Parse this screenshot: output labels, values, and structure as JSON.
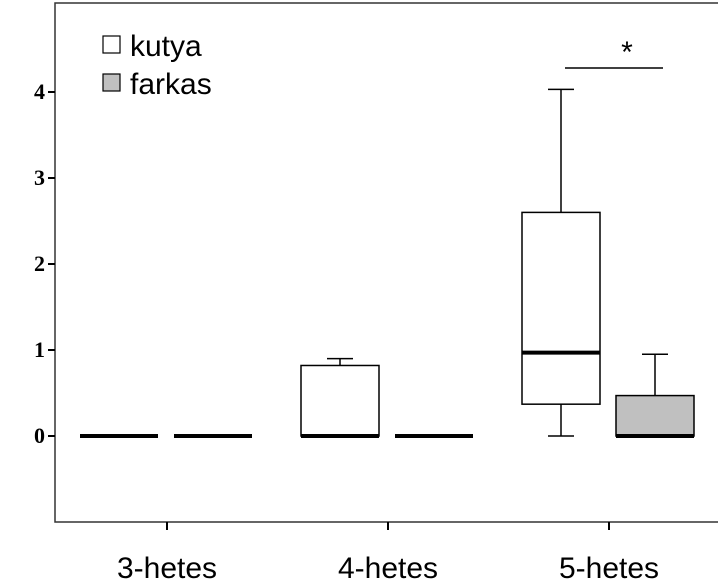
{
  "chart_data": {
    "type": "box",
    "categories": [
      "3-hetes",
      "4-hetes",
      "5-hetes"
    ],
    "series": [
      {
        "name": "kutya",
        "color": "#ffffff",
        "min": [
          0,
          0,
          0
        ],
        "q1": [
          0,
          0,
          0.37
        ],
        "median": [
          0,
          0,
          0.97
        ],
        "q3": [
          0,
          0.82,
          2.6
        ],
        "max": [
          0,
          0.9,
          4.03
        ]
      },
      {
        "name": "farkas",
        "color": "#c0c0c0",
        "min": [
          0,
          0,
          0
        ],
        "q1": [
          0,
          0,
          0
        ],
        "median": [
          0,
          0,
          0
        ],
        "q3": [
          0,
          0,
          0.47
        ],
        "max": [
          0,
          0,
          0.95
        ]
      }
    ],
    "annotations": [
      "*"
    ],
    "ylim": [
      -1,
      5
    ],
    "yticks": [
      0,
      1,
      2,
      3,
      4
    ],
    "legend": "upper left"
  }
}
